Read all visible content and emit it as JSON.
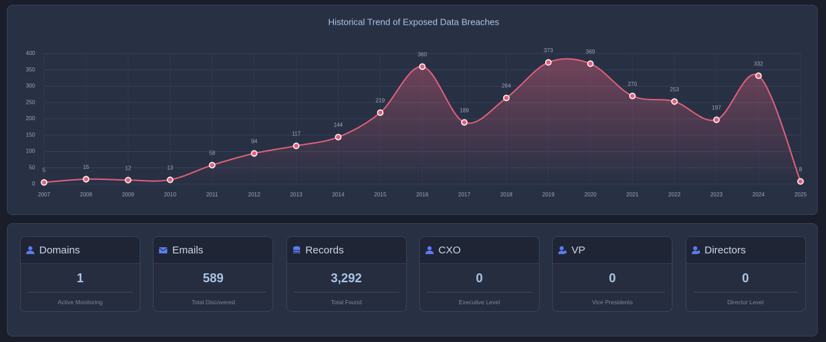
{
  "chart_data": {
    "type": "line",
    "title": "Historical Trend of Exposed Data Breaches",
    "categories": [
      "2007",
      "2008",
      "2009",
      "2010",
      "2011",
      "2012",
      "2013",
      "2014",
      "2015",
      "2016",
      "2017",
      "2018",
      "2019",
      "2020",
      "2021",
      "2022",
      "2023",
      "2024",
      "2025"
    ],
    "values": [
      5,
      15,
      12,
      13,
      58,
      94,
      117,
      144,
      219,
      360,
      189,
      264,
      373,
      369,
      270,
      253,
      197,
      332,
      8
    ],
    "color": "#e0607a",
    "smooth": true,
    "area": true,
    "ylim": [
      0,
      400
    ],
    "yticks": [
      0,
      50,
      100,
      150,
      200,
      250,
      300,
      350,
      400
    ],
    "grid": true
  },
  "cards": [
    {
      "title": "Domains",
      "value": 1,
      "subtitle": "Active Monitoring"
    },
    {
      "title": "Emails",
      "value": 589,
      "subtitle": "Total Discovered"
    },
    {
      "title": "Records",
      "value": "3,292",
      "subtitle": "Total Found"
    },
    {
      "title": "CXO",
      "value": 0,
      "subtitle": "Executive Level"
    },
    {
      "title": "VP",
      "value": 0,
      "subtitle": "Vice Presidents"
    },
    {
      "title": "Directors",
      "value": 0,
      "subtitle": "Director Level"
    }
  ]
}
